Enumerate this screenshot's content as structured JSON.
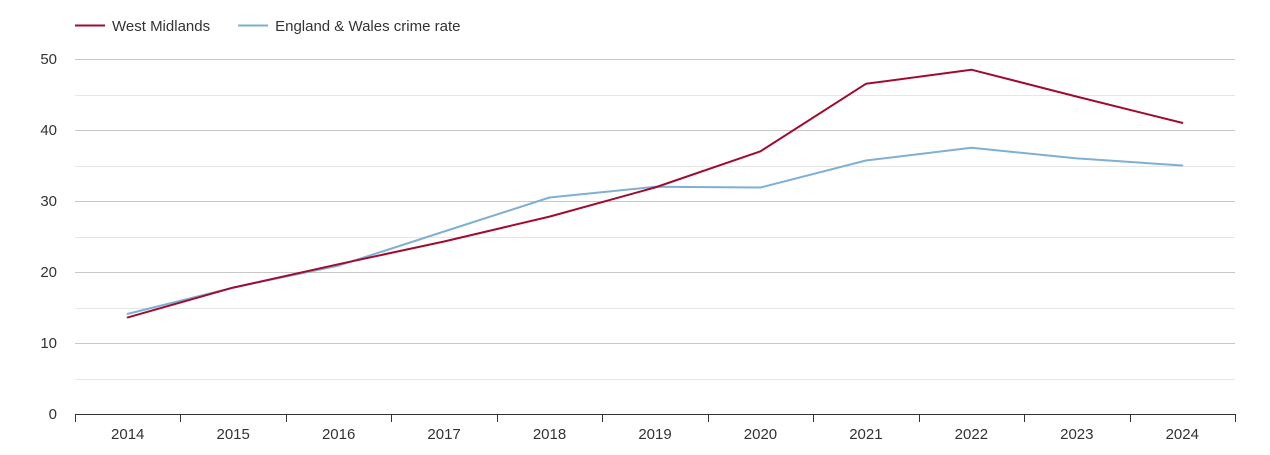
{
  "chart_data": {
    "type": "line",
    "title": "",
    "xlabel": "",
    "ylabel": "",
    "legend_position": "top-left",
    "grid": true,
    "x": [
      "2014",
      "2015",
      "2016",
      "2017",
      "2018",
      "2019",
      "2020",
      "2021",
      "2022",
      "2023",
      "2024"
    ],
    "ylim": [
      0,
      50
    ],
    "yticks": [
      0,
      10,
      20,
      30,
      40,
      50
    ],
    "series": [
      {
        "name": "West Midlands",
        "color": "#a00c30",
        "values": [
          13.6,
          17.8,
          21.1,
          24.3,
          27.8,
          31.9,
          37.0,
          46.5,
          48.5,
          44.7,
          41.0
        ]
      },
      {
        "name": "England & Wales crime rate",
        "color": "#7fb0d2",
        "values": [
          14.1,
          17.8,
          20.9,
          25.7,
          30.5,
          32.0,
          31.9,
          35.7,
          37.5,
          36.0,
          35.0
        ]
      }
    ]
  }
}
